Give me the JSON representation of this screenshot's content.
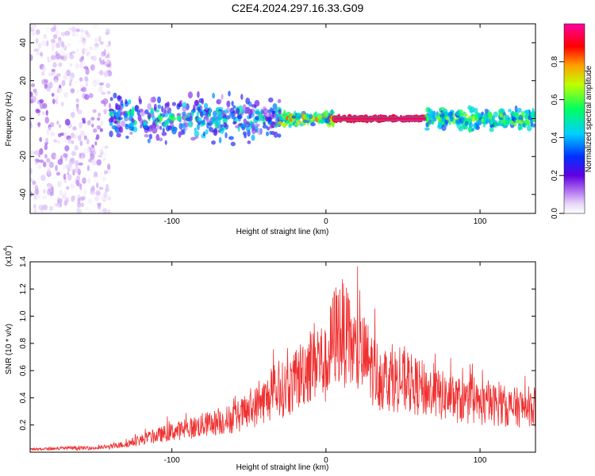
{
  "title": "C2E4.2024.297.16.33.G09",
  "colors": {
    "snr_line": "#f03030",
    "band_line": "#20a0a0"
  },
  "chart_data": [
    {
      "type": "heatmap",
      "xlabel": "Height of straight line (km)",
      "ylabel": "Frequency (Hz)",
      "xlim": [
        -192,
        136
      ],
      "ylim": [
        -50,
        50
      ],
      "x_ticks": [
        -100,
        0,
        100
      ],
      "x_tick_labels": [
        "-100",
        "0",
        "100"
      ],
      "y_ticks": [
        -40,
        -20,
        0,
        20,
        40
      ],
      "y_tick_labels": [
        "-40",
        "-20",
        "0",
        "20",
        "40"
      ],
      "colorbar": {
        "label": "Normalized spectral amplitude",
        "range": [
          0,
          1
        ],
        "ticks": [
          0.0,
          0.2,
          0.4,
          0.6,
          0.8
        ],
        "tick_labels": [
          "0.0",
          "0.2",
          "0.4",
          "0.6",
          "0.8"
        ],
        "colormap": "rainbow (white-violet-blue-cyan-green-yellow-red-magenta)"
      },
      "description_regions": [
        {
          "x": [
            -192,
            -140
          ],
          "freq_spread": [
            -50,
            50
          ],
          "amplitude": [
            0.0,
            0.2
          ]
        },
        {
          "x": [
            -140,
            -30
          ],
          "freq_spread": [
            -15,
            15
          ],
          "amplitude": [
            0.1,
            0.6
          ]
        },
        {
          "x": [
            -30,
            5
          ],
          "freq_spread": [
            -5,
            5
          ],
          "amplitude": [
            0.3,
            0.9
          ]
        },
        {
          "x": [
            5,
            65
          ],
          "freq_spread": [
            -1,
            1
          ],
          "amplitude": [
            0.9,
            1.0
          ]
        },
        {
          "x": [
            65,
            136
          ],
          "freq_spread": [
            -8,
            8
          ],
          "amplitude": [
            0.3,
            0.7
          ]
        }
      ],
      "grid": false
    },
    {
      "type": "line",
      "xlabel": "Height of straight line (km)",
      "ylabel": "SNR (10 * v/v)",
      "y_multiplier": "(x10",
      "y_multiplier_exp": "4",
      "xlim": [
        -192,
        136
      ],
      "ylim": [
        0,
        1.4
      ],
      "x_ticks": [
        -100,
        0,
        100
      ],
      "x_tick_labels": [
        "-100",
        "0",
        "100"
      ],
      "y_ticks": [
        0.2,
        0.4,
        0.6,
        0.8,
        1.0,
        1.2,
        1.4
      ],
      "y_tick_labels": [
        "0.2",
        "0.4",
        "0.6",
        "0.8",
        "1.0",
        "1.2",
        "1.4"
      ],
      "series": [
        {
          "x": [
            -192,
            -170,
            -150,
            -140,
            -130,
            -120,
            -110,
            -100,
            -90,
            -80,
            -70,
            -60,
            -50,
            -40,
            -30,
            -20,
            -15,
            -10,
            -5,
            0,
            5,
            10,
            15,
            20,
            25,
            30,
            35,
            40,
            50,
            60,
            70,
            80,
            90,
            100,
            110,
            120,
            130,
            136
          ],
          "y": [
            0.02,
            0.03,
            0.03,
            0.04,
            0.06,
            0.09,
            0.12,
            0.15,
            0.17,
            0.2,
            0.22,
            0.25,
            0.3,
            0.38,
            0.45,
            0.5,
            0.6,
            0.65,
            0.7,
            0.62,
            0.85,
            0.9,
            0.8,
            0.72,
            0.7,
            0.62,
            0.55,
            0.55,
            0.52,
            0.48,
            0.43,
            0.4,
            0.37,
            0.35,
            0.35,
            0.33,
            0.33,
            0.33
          ]
        }
      ],
      "grid": false
    }
  ]
}
